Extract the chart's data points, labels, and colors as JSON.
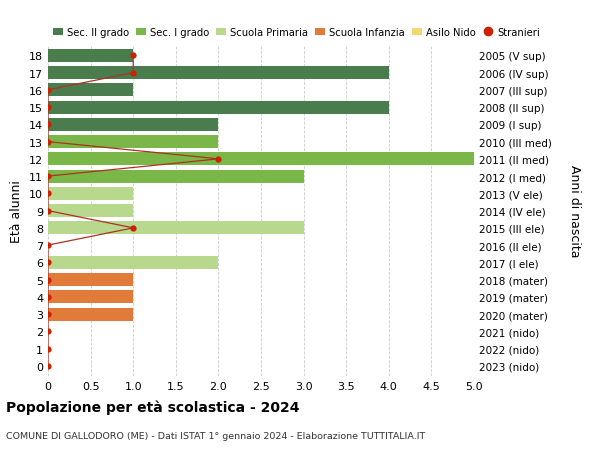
{
  "ages": [
    18,
    17,
    16,
    15,
    14,
    13,
    12,
    11,
    10,
    9,
    8,
    7,
    6,
    5,
    4,
    3,
    2,
    1,
    0
  ],
  "right_labels": [
    "2005 (V sup)",
    "2006 (IV sup)",
    "2007 (III sup)",
    "2008 (II sup)",
    "2009 (I sup)",
    "2010 (III med)",
    "2011 (II med)",
    "2012 (I med)",
    "2013 (V ele)",
    "2014 (IV ele)",
    "2015 (III ele)",
    "2016 (II ele)",
    "2017 (I ele)",
    "2018 (mater)",
    "2019 (mater)",
    "2020 (mater)",
    "2021 (nido)",
    "2022 (nido)",
    "2023 (nido)"
  ],
  "bar_values": [
    1,
    4,
    1,
    4,
    2,
    2,
    5,
    3,
    1,
    1,
    3,
    0,
    2,
    1,
    1,
    1,
    0,
    0,
    0
  ],
  "bar_colors": [
    "#4a7c4e",
    "#4a7c4e",
    "#4a7c4e",
    "#4a7c4e",
    "#4a7c4e",
    "#7ab648",
    "#7ab648",
    "#7ab648",
    "#b8d98d",
    "#b8d98d",
    "#b8d98d",
    "#b8d98d",
    "#b8d98d",
    "#e07b39",
    "#e07b39",
    "#e07b39",
    "#f5d76e",
    "#f5d76e",
    "#f5d76e"
  ],
  "stranieri_x": [
    1,
    1,
    0,
    0,
    0,
    0,
    2,
    0,
    0,
    0,
    1,
    0,
    0,
    0,
    0,
    0,
    0,
    0,
    0
  ],
  "title": "Popolazione per età scolastica - 2024",
  "subtitle": "COMUNE DI GALLODORO (ME) - Dati ISTAT 1° gennaio 2024 - Elaborazione TUTTITALIA.IT",
  "ylabel": "Età alunni",
  "ylabel_right": "Anni di nascita",
  "xlim": [
    0,
    5.0
  ],
  "xticks": [
    0.0,
    0.5,
    1.0,
    1.5,
    2.0,
    2.5,
    3.0,
    3.5,
    4.0,
    4.5,
    5.0
  ],
  "xtick_labels": [
    "0",
    "0.5",
    "1.0",
    "1.5",
    "2.0",
    "2.5",
    "3.0",
    "3.5",
    "4.0",
    "4.5",
    "5.0"
  ],
  "legend_items": [
    {
      "label": "Sec. II grado",
      "color": "#4a7c4e",
      "type": "patch"
    },
    {
      "label": "Sec. I grado",
      "color": "#7ab648",
      "type": "patch"
    },
    {
      "label": "Scuola Primaria",
      "color": "#b8d98d",
      "type": "patch"
    },
    {
      "label": "Scuola Infanzia",
      "color": "#e07b39",
      "type": "patch"
    },
    {
      "label": "Asilo Nido",
      "color": "#f5d76e",
      "type": "patch"
    },
    {
      "label": "Stranieri",
      "color": "#cc2200",
      "type": "dot"
    }
  ],
  "stranieri_color": "#cc2200",
  "line_color": "#aa3322",
  "bg_color": "#ffffff",
  "grid_color": "#cccccc"
}
